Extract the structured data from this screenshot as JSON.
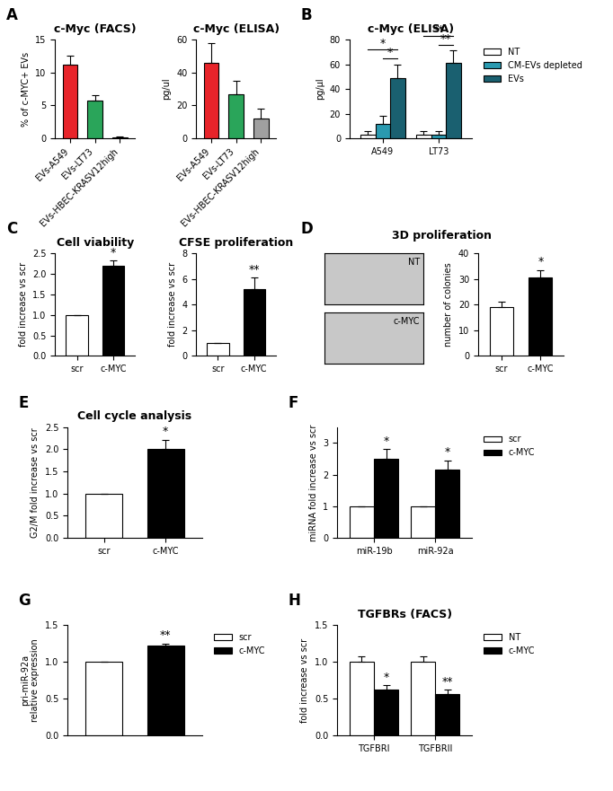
{
  "chart_data": [
    {
      "type": "bar",
      "panel": "A",
      "title": "c-Myc (FACS)",
      "ylabel": "% of c-MYC+ EVs",
      "categories": [
        "EVs-A549",
        "EVs-LT73",
        "EVs-HBEC-KRASV12high"
      ],
      "values": [
        11.2,
        5.8,
        0.2
      ],
      "errors": [
        1.4,
        0.7,
        0.1
      ],
      "colors": [
        "#e8242a",
        "#2aa55a",
        "#a0a0a0"
      ],
      "ylim": [
        0,
        15
      ],
      "yticks": [
        0,
        5,
        10,
        15
      ]
    },
    {
      "type": "bar",
      "panel": "A",
      "title": "c-Myc (ELISA)",
      "ylabel": "pg/ul",
      "categories": [
        "EVs-A549",
        "EVs-LT73",
        "EVs-HBEC-KRASV12high"
      ],
      "values": [
        46,
        27,
        12
      ],
      "errors": [
        12,
        8,
        6
      ],
      "colors": [
        "#e8242a",
        "#2aa55a",
        "#a0a0a0"
      ],
      "ylim": [
        0,
        60
      ],
      "yticks": [
        0,
        20,
        40,
        60
      ]
    },
    {
      "type": "bar",
      "panel": "B",
      "title": "c-Myc (ELISA)",
      "ylabel": "pg/μl",
      "categories": [
        "A549",
        "LT73"
      ],
      "series": [
        {
          "name": "NT",
          "color": "#ffffff",
          "values": [
            3,
            3
          ],
          "errors": [
            3,
            3
          ]
        },
        {
          "name": "CM-EVs depleted",
          "color": "#2a9ab0",
          "values": [
            12,
            3
          ],
          "errors": [
            6,
            3
          ]
        },
        {
          "name": "EVs",
          "color": "#1a6070",
          "values": [
            49,
            61
          ],
          "errors": [
            11,
            10
          ]
        }
      ],
      "significance": [
        {
          "category": "A549",
          "from": "CM-EVs depleted",
          "to": "EVs",
          "label": "*"
        },
        {
          "category": "A549",
          "from": "NT",
          "to": "EVs",
          "label": "*"
        },
        {
          "category": "LT73",
          "from": "CM-EVs depleted",
          "to": "EVs",
          "label": "**"
        },
        {
          "category": "LT73",
          "from": "NT",
          "to": "EVs",
          "label": "**"
        }
      ],
      "legend": "upper left",
      "ylim": [
        0,
        80
      ],
      "yticks": [
        0,
        20,
        40,
        60,
        80
      ]
    },
    {
      "type": "bar",
      "panel": "C",
      "title": "Cell viability",
      "ylabel": "fold increase vs scr",
      "categories": [
        "scr",
        "c-MYC"
      ],
      "values": [
        1,
        2.2
      ],
      "errors": [
        0,
        0.12
      ],
      "colors": [
        "#ffffff",
        "#000000"
      ],
      "stars": [
        null,
        "*"
      ],
      "ylim": [
        0,
        2.5
      ],
      "yticks": [
        {
          "value": 0,
          "label": "0.0"
        },
        {
          "value": 0.5,
          "label": "0.5"
        },
        {
          "value": 1,
          "label": "1.0"
        },
        {
          "value": 1.5,
          "label": "1.5"
        },
        {
          "value": 2,
          "label": "2.0"
        },
        {
          "value": 2.5,
          "label": "2.5"
        }
      ]
    },
    {
      "type": "bar",
      "panel": "C",
      "title": "CFSE proliferation",
      "ylabel": "fold increase vs scr",
      "categories": [
        "scr",
        "c-MYC"
      ],
      "values": [
        1,
        5.2
      ],
      "errors": [
        0,
        0.9
      ],
      "colors": [
        "#ffffff",
        "#000000"
      ],
      "stars": [
        null,
        "**"
      ],
      "ylim": [
        0,
        8
      ],
      "yticks": [
        0,
        2,
        4,
        6,
        8
      ]
    },
    {
      "type": "bar",
      "panel": "D",
      "title": "3D proliferation",
      "ylabel": "number of colonies",
      "image_labels": [
        "NT",
        "c-MYC"
      ],
      "categories": [
        "scr",
        "c-MYC"
      ],
      "values": [
        19,
        30.5
      ],
      "errors": [
        2,
        3
      ],
      "colors": [
        "#ffffff",
        "#000000"
      ],
      "stars": [
        null,
        "*"
      ],
      "ylim": [
        0,
        40
      ],
      "yticks": [
        0,
        10,
        20,
        30,
        40
      ]
    },
    {
      "type": "bar",
      "panel": "E",
      "title": "Cell cycle analysis",
      "ylabel": "G2/M fold increase vs scr",
      "categories": [
        "scr",
        "c-MYC"
      ],
      "values": [
        1,
        2.0
      ],
      "errors": [
        0,
        0.22
      ],
      "colors": [
        "#ffffff",
        "#000000"
      ],
      "stars": [
        null,
        "*"
      ],
      "ylim": [
        0,
        2.5
      ],
      "yticks": [
        {
          "value": 0,
          "label": "0.0"
        },
        {
          "value": 0.5,
          "label": "0.5"
        },
        {
          "value": 1,
          "label": "1.0"
        },
        {
          "value": 1.5,
          "label": "1.5"
        },
        {
          "value": 2,
          "label": "2.0"
        },
        {
          "value": 2.5,
          "label": "2.5"
        }
      ]
    },
    {
      "type": "bar",
      "panel": "F",
      "ylabel": "miRNA fold increase vs scr",
      "categories": [
        "miR-19b",
        "miR-92a"
      ],
      "series": [
        {
          "name": "scr",
          "color": "#ffffff",
          "values": [
            1,
            1
          ],
          "errors": [
            0,
            0
          ]
        },
        {
          "name": "c-MYC",
          "color": "#000000",
          "values": [
            2.5,
            2.15
          ],
          "errors": [
            0.3,
            0.3
          ],
          "stars": [
            "*",
            "*"
          ]
        }
      ],
      "legend": "upper left",
      "ylim": [
        0,
        3.5
      ],
      "yticks": [
        0,
        1,
        2,
        3
      ]
    },
    {
      "type": "bar",
      "panel": "G",
      "ylabel": "pri-miR-92a\nrelative expression",
      "categories": [
        null,
        null
      ],
      "values": [
        1,
        1.22
      ],
      "errors": [
        0,
        0.03
      ],
      "series_names": [
        "scr",
        "c-MYC"
      ],
      "colors": [
        "#ffffff",
        "#000000"
      ],
      "stars": [
        null,
        "**"
      ],
      "legend": "upper left",
      "ylim": [
        0,
        1.5
      ],
      "yticks": [
        {
          "value": 0,
          "label": "0.0"
        },
        {
          "value": 0.5,
          "label": "0.5"
        },
        {
          "value": 1,
          "label": "1.0"
        },
        {
          "value": 1.5,
          "label": "1.5"
        }
      ]
    },
    {
      "type": "bar",
      "panel": "H",
      "title": "TGFBRs (FACS)",
      "ylabel": "fold increase vs scr",
      "categories": [
        "TGFBRI",
        "TGFBRII"
      ],
      "series": [
        {
          "name": "NT",
          "color": "#ffffff",
          "values": [
            1,
            1
          ],
          "errors": [
            0.08,
            0.08
          ]
        },
        {
          "name": "c-MYC",
          "color": "#000000",
          "values": [
            0.62,
            0.56
          ],
          "errors": [
            0.06,
            0.06
          ],
          "stars": [
            "*",
            "**"
          ]
        }
      ],
      "legend": "upper left",
      "ylim": [
        0,
        1.5
      ],
      "yticks": [
        {
          "value": 0,
          "label": "0.0"
        },
        {
          "value": 0.5,
          "label": "0.5"
        },
        {
          "value": 1,
          "label": "1.0"
        },
        {
          "value": 1.5,
          "label": "1.5"
        }
      ]
    }
  ]
}
